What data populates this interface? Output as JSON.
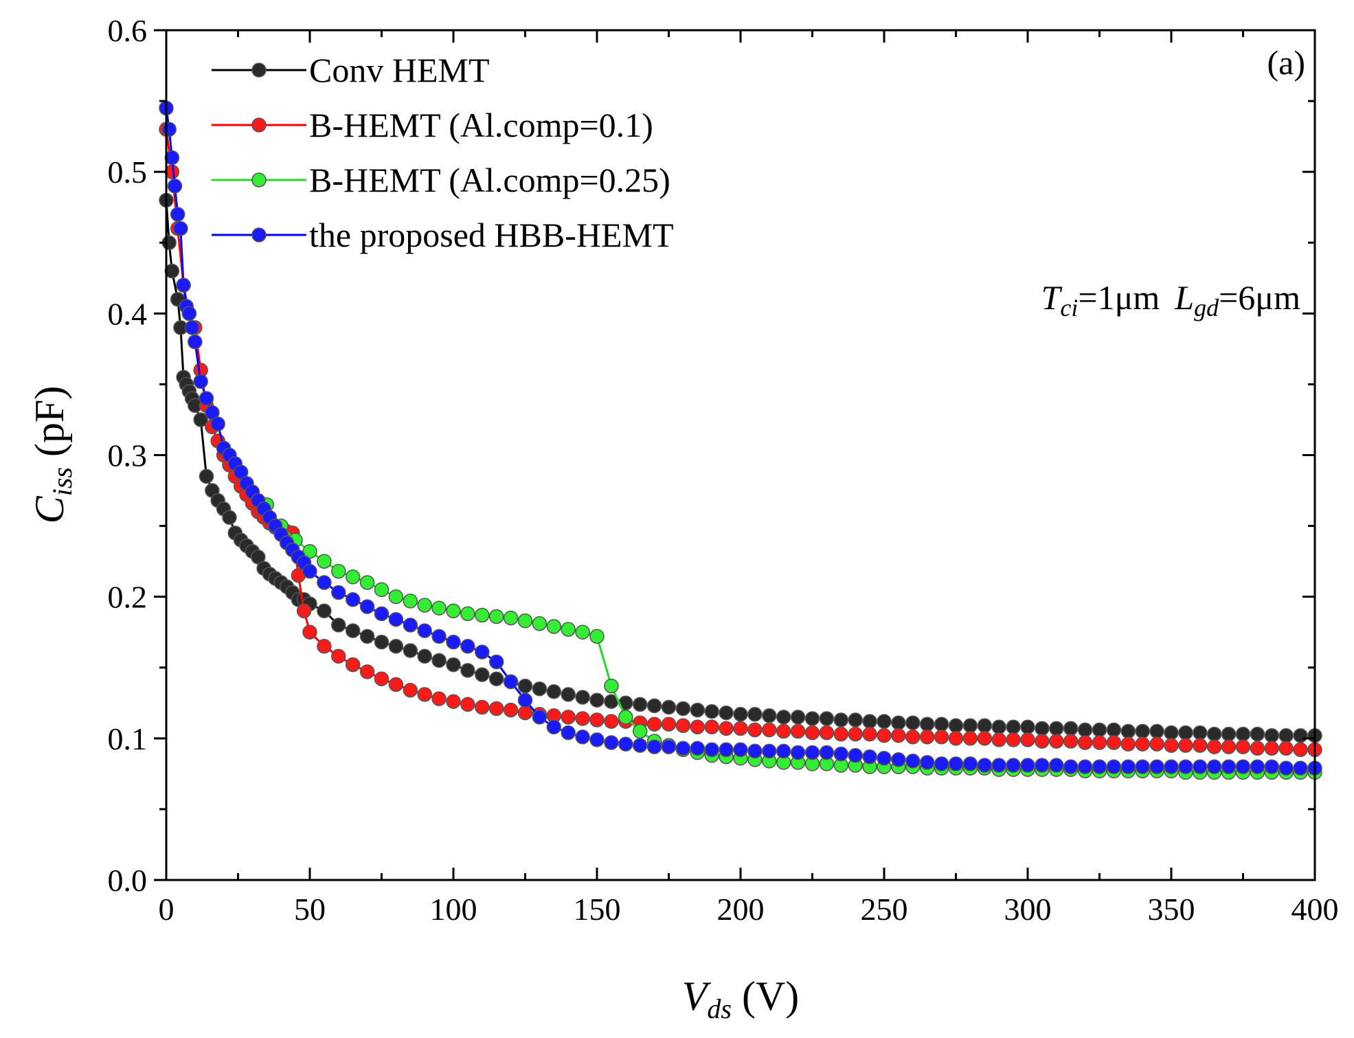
{
  "chart_data": {
    "type": "line",
    "panel_label": "(a)",
    "xlabel": {
      "main": "V",
      "sub": "ds",
      "unit": " (V)"
    },
    "ylabel": {
      "main": "C",
      "sub": "iss",
      "unit": " (pF)"
    },
    "xlim": [
      0,
      400
    ],
    "ylim": [
      0.0,
      0.6
    ],
    "xticks": [
      0,
      50,
      100,
      150,
      200,
      250,
      300,
      350,
      400
    ],
    "xtick_labels": [
      "0",
      "50",
      "100",
      "150",
      "200",
      "250",
      "300",
      "350",
      "400"
    ],
    "yticks": [
      0.0,
      0.1,
      0.2,
      0.3,
      0.4,
      0.5,
      0.6
    ],
    "ytick_labels": [
      "0.0",
      "0.1",
      "0.2",
      "0.3",
      "0.4",
      "0.5",
      "0.6"
    ],
    "grid": false,
    "legend_position": "top-left",
    "annotation": {
      "t_main": "T",
      "t_sub": "ci",
      "t_val": "=1μm",
      "l_main": "L",
      "l_sub": "gd",
      "l_val": "=6μm"
    },
    "series": [
      {
        "name": "Conv HEMT",
        "color": "#000000",
        "marker_fill": "#2a2a2a",
        "x": [
          0,
          1,
          2,
          4,
          5,
          6,
          7,
          8,
          9,
          10,
          12,
          14,
          16,
          18,
          20,
          22,
          24,
          26,
          28,
          30,
          32,
          34,
          36,
          38,
          40,
          42,
          44,
          46,
          48,
          50,
          55,
          60,
          65,
          70,
          75,
          80,
          85,
          90,
          95,
          100,
          105,
          110,
          115,
          120,
          125,
          130,
          135,
          140,
          145,
          150,
          155,
          160,
          165,
          170,
          175,
          180,
          185,
          190,
          195,
          200,
          205,
          210,
          215,
          220,
          225,
          230,
          235,
          240,
          245,
          250,
          255,
          260,
          265,
          270,
          275,
          280,
          285,
          290,
          295,
          300,
          305,
          310,
          315,
          320,
          325,
          330,
          335,
          340,
          345,
          350,
          355,
          360,
          365,
          370,
          375,
          380,
          385,
          390,
          395,
          400
        ],
        "y": [
          0.48,
          0.45,
          0.43,
          0.41,
          0.39,
          0.355,
          0.35,
          0.345,
          0.34,
          0.335,
          0.325,
          0.285,
          0.275,
          0.268,
          0.262,
          0.256,
          0.245,
          0.24,
          0.236,
          0.232,
          0.228,
          0.22,
          0.216,
          0.213,
          0.21,
          0.207,
          0.203,
          0.198,
          0.198,
          0.195,
          0.19,
          0.18,
          0.176,
          0.172,
          0.168,
          0.165,
          0.162,
          0.158,
          0.155,
          0.152,
          0.148,
          0.145,
          0.142,
          0.14,
          0.137,
          0.135,
          0.133,
          0.131,
          0.129,
          0.127,
          0.126,
          0.125,
          0.124,
          0.123,
          0.122,
          0.121,
          0.12,
          0.119,
          0.118,
          0.117,
          0.117,
          0.116,
          0.115,
          0.115,
          0.114,
          0.114,
          0.113,
          0.113,
          0.112,
          0.112,
          0.111,
          0.111,
          0.11,
          0.11,
          0.109,
          0.109,
          0.109,
          0.108,
          0.108,
          0.108,
          0.107,
          0.107,
          0.107,
          0.106,
          0.106,
          0.106,
          0.105,
          0.105,
          0.105,
          0.104,
          0.104,
          0.104,
          0.103,
          0.103,
          0.103,
          0.103,
          0.102,
          0.102,
          0.102,
          0.102
        ]
      },
      {
        "name": "B-HEMT (Al.comp=0.1)",
        "color": "#ff0000",
        "marker_fill": "#ff1a1a",
        "x": [
          0,
          2,
          4,
          6,
          8,
          10,
          12,
          14,
          16,
          18,
          20,
          22,
          24,
          26,
          28,
          30,
          32,
          34,
          36,
          38,
          40,
          42,
          44,
          46,
          48,
          50,
          55,
          60,
          65,
          70,
          75,
          80,
          85,
          90,
          95,
          100,
          105,
          110,
          115,
          120,
          125,
          130,
          135,
          140,
          145,
          150,
          155,
          160,
          165,
          170,
          175,
          180,
          185,
          190,
          195,
          200,
          205,
          210,
          215,
          220,
          225,
          230,
          235,
          240,
          245,
          250,
          255,
          260,
          265,
          270,
          275,
          280,
          285,
          290,
          295,
          300,
          305,
          310,
          315,
          320,
          325,
          330,
          335,
          340,
          345,
          350,
          355,
          360,
          365,
          370,
          375,
          380,
          385,
          390,
          395,
          400
        ],
        "y": [
          0.53,
          0.5,
          0.46,
          0.42,
          0.4,
          0.39,
          0.36,
          0.335,
          0.32,
          0.31,
          0.3,
          0.293,
          0.285,
          0.278,
          0.272,
          0.266,
          0.26,
          0.256,
          0.252,
          0.249,
          0.246,
          0.246,
          0.245,
          0.215,
          0.19,
          0.175,
          0.165,
          0.158,
          0.152,
          0.147,
          0.142,
          0.138,
          0.134,
          0.131,
          0.128,
          0.126,
          0.124,
          0.122,
          0.121,
          0.12,
          0.118,
          0.117,
          0.116,
          0.115,
          0.114,
          0.113,
          0.112,
          0.112,
          0.111,
          0.11,
          0.11,
          0.109,
          0.108,
          0.108,
          0.107,
          0.107,
          0.106,
          0.106,
          0.105,
          0.105,
          0.104,
          0.104,
          0.103,
          0.103,
          0.103,
          0.102,
          0.102,
          0.101,
          0.101,
          0.101,
          0.1,
          0.1,
          0.1,
          0.099,
          0.099,
          0.099,
          0.098,
          0.098,
          0.098,
          0.097,
          0.097,
          0.097,
          0.096,
          0.096,
          0.096,
          0.095,
          0.095,
          0.095,
          0.094,
          0.094,
          0.094,
          0.093,
          0.093,
          0.093,
          0.092,
          0.092
        ]
      },
      {
        "name": "B-HEMT (Al.comp=0.25)",
        "color": "#22dd22",
        "marker_fill": "#33ee33",
        "x": [
          35,
          40,
          45,
          50,
          55,
          60,
          65,
          70,
          75,
          80,
          85,
          90,
          95,
          100,
          105,
          110,
          115,
          120,
          125,
          130,
          135,
          140,
          145,
          150,
          155,
          160,
          165,
          170,
          175,
          180,
          185,
          190,
          195,
          200,
          205,
          210,
          215,
          220,
          225,
          230,
          235,
          240,
          245,
          250,
          255,
          260,
          265,
          270,
          275,
          280,
          285,
          290,
          295,
          300,
          305,
          310,
          315,
          320,
          325,
          330,
          335,
          340,
          345,
          350,
          355,
          360,
          365,
          370,
          375,
          380,
          385,
          390,
          395,
          400
        ],
        "y": [
          0.265,
          0.25,
          0.24,
          0.232,
          0.225,
          0.218,
          0.214,
          0.21,
          0.205,
          0.2,
          0.197,
          0.194,
          0.192,
          0.19,
          0.188,
          0.187,
          0.186,
          0.185,
          0.183,
          0.181,
          0.179,
          0.177,
          0.175,
          0.172,
          0.137,
          0.115,
          0.105,
          0.098,
          0.095,
          0.092,
          0.09,
          0.088,
          0.087,
          0.086,
          0.085,
          0.084,
          0.083,
          0.083,
          0.082,
          0.082,
          0.081,
          0.081,
          0.08,
          0.08,
          0.08,
          0.08,
          0.079,
          0.079,
          0.079,
          0.079,
          0.079,
          0.078,
          0.078,
          0.078,
          0.078,
          0.078,
          0.078,
          0.077,
          0.077,
          0.077,
          0.077,
          0.077,
          0.077,
          0.077,
          0.076,
          0.076,
          0.076,
          0.076,
          0.076,
          0.076,
          0.076,
          0.076,
          0.076,
          0.076
        ]
      },
      {
        "name": "the proposed HBB-HEMT",
        "color": "#0000ff",
        "marker_fill": "#1a1aff",
        "x": [
          0,
          1,
          2,
          3,
          4,
          5,
          6,
          7,
          8,
          9,
          10,
          12,
          14,
          16,
          18,
          20,
          22,
          24,
          26,
          28,
          30,
          32,
          34,
          36,
          38,
          40,
          42,
          44,
          46,
          48,
          50,
          55,
          60,
          65,
          70,
          75,
          80,
          85,
          90,
          95,
          100,
          105,
          110,
          115,
          120,
          125,
          130,
          135,
          140,
          145,
          150,
          155,
          160,
          165,
          170,
          175,
          180,
          185,
          190,
          195,
          200,
          205,
          210,
          215,
          220,
          225,
          230,
          235,
          240,
          245,
          250,
          255,
          260,
          265,
          270,
          275,
          280,
          285,
          290,
          295,
          300,
          305,
          310,
          315,
          320,
          325,
          330,
          335,
          340,
          345,
          350,
          355,
          360,
          365,
          370,
          375,
          380,
          385,
          390,
          395,
          400
        ],
        "y": [
          0.545,
          0.53,
          0.51,
          0.49,
          0.47,
          0.46,
          0.42,
          0.405,
          0.4,
          0.39,
          0.38,
          0.352,
          0.34,
          0.33,
          0.322,
          0.305,
          0.3,
          0.294,
          0.288,
          0.28,
          0.274,
          0.268,
          0.262,
          0.256,
          0.25,
          0.244,
          0.238,
          0.233,
          0.228,
          0.224,
          0.218,
          0.21,
          0.203,
          0.198,
          0.193,
          0.188,
          0.184,
          0.18,
          0.176,
          0.172,
          0.168,
          0.165,
          0.161,
          0.154,
          0.14,
          0.127,
          0.115,
          0.108,
          0.104,
          0.101,
          0.099,
          0.097,
          0.096,
          0.095,
          0.094,
          0.094,
          0.093,
          0.093,
          0.092,
          0.092,
          0.092,
          0.091,
          0.091,
          0.091,
          0.09,
          0.09,
          0.09,
          0.089,
          0.088,
          0.087,
          0.086,
          0.085,
          0.084,
          0.083,
          0.082,
          0.082,
          0.082,
          0.081,
          0.081,
          0.081,
          0.081,
          0.081,
          0.081,
          0.08,
          0.08,
          0.08,
          0.08,
          0.08,
          0.08,
          0.08,
          0.08,
          0.08,
          0.08,
          0.08,
          0.08,
          0.08,
          0.08,
          0.08,
          0.079,
          0.079,
          0.079
        ]
      }
    ]
  }
}
